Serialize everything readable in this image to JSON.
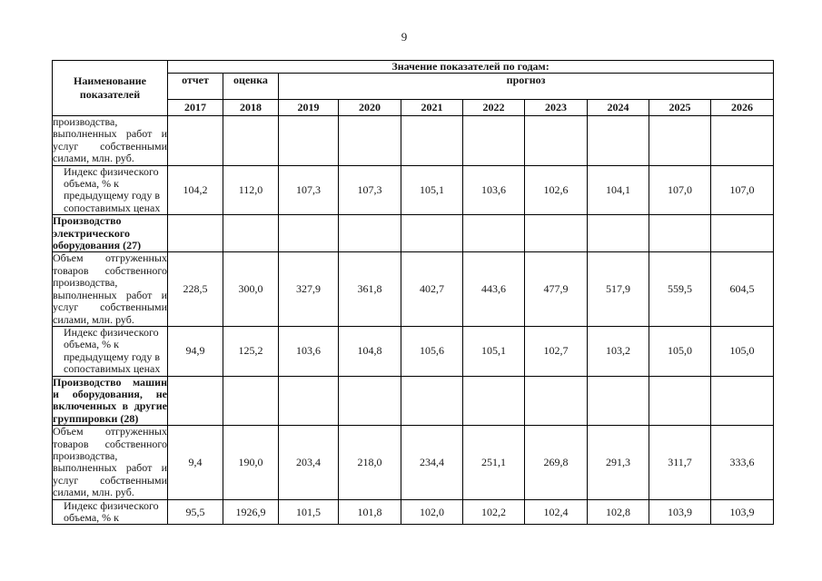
{
  "page": {
    "number": "9"
  },
  "table": {
    "header": {
      "name_col": "Наименование показателей",
      "values_title": "Значение показателей по годам:",
      "report": "отчет",
      "estimate": "оценка",
      "forecast": "прогноз",
      "years": [
        "2017",
        "2018",
        "2019",
        "2020",
        "2021",
        "2022",
        "2023",
        "2024",
        "2025",
        "2026"
      ]
    },
    "rows": [
      {
        "kind": "plain",
        "label": "производства,\nвыполненных работ и\nуслуг собственными\nсилами, млн. руб.",
        "values": [
          "",
          "",
          "",
          "",
          "",
          "",
          "",
          "",
          "",
          ""
        ]
      },
      {
        "kind": "index",
        "label": "Индекс физического\nобъема, % к\nпредыдущему году в\nсопоставимых ценах",
        "values": [
          "104,2",
          "112,0",
          "107,3",
          "107,3",
          "105,1",
          "103,6",
          "102,6",
          "104,1",
          "107,0",
          "107,0"
        ]
      },
      {
        "kind": "section",
        "label": "Производство\nэлектрического\nоборудования (27)",
        "values": [
          "",
          "",
          "",
          "",
          "",
          "",
          "",
          "",
          "",
          ""
        ]
      },
      {
        "kind": "plain",
        "label": "Объем отгруженных\nтоваров собственного\nпроизводства,\nвыполненных работ и\nуслуг собственными\nсилами, млн. руб.",
        "values": [
          "228,5",
          "300,0",
          "327,9",
          "361,8",
          "402,7",
          "443,6",
          "477,9",
          "517,9",
          "559,5",
          "604,5"
        ]
      },
      {
        "kind": "index",
        "label": "Индекс физического\nобъема, % к\nпредыдущему году в\nсопоставимых ценах",
        "values": [
          "94,9",
          "125,2",
          "103,6",
          "104,8",
          "105,6",
          "105,1",
          "102,7",
          "103,2",
          "105,0",
          "105,0"
        ]
      },
      {
        "kind": "section",
        "label": "Производство машин\nи оборудования, не\nвключенных в другие\nгруппировки (28)",
        "values": [
          "",
          "",
          "",
          "",
          "",
          "",
          "",
          "",
          "",
          ""
        ]
      },
      {
        "kind": "plain",
        "label": "Объем отгруженных\nтоваров собственного\nпроизводства,\nвыполненных работ и\nуслуг собственными\nсилами, млн. руб.",
        "values": [
          "9,4",
          "190,0",
          "203,4",
          "218,0",
          "234,4",
          "251,1",
          "269,8",
          "291,3",
          "311,7",
          "333,6"
        ]
      },
      {
        "kind": "index",
        "label": "Индекс физического\nобъема, % к",
        "values": [
          "95,5",
          "1926,9",
          "101,5",
          "101,8",
          "102,0",
          "102,2",
          "102,4",
          "102,8",
          "103,9",
          "103,9"
        ]
      }
    ]
  }
}
